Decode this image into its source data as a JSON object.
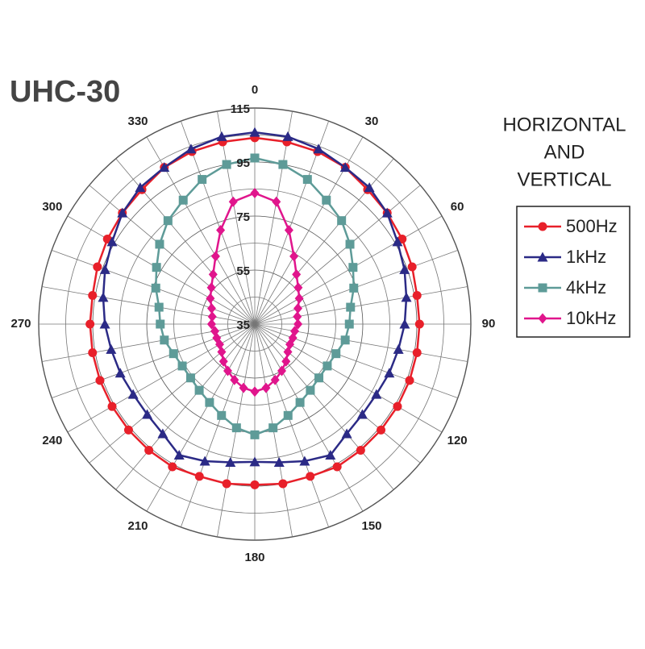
{
  "chart_data": {
    "type": "polar",
    "title": "UHC-30",
    "legend_title": [
      "HORIZONTAL",
      "AND",
      "VERTICAL"
    ],
    "theta": [
      0,
      10,
      20,
      30,
      40,
      50,
      60,
      70,
      80,
      90,
      100,
      110,
      120,
      130,
      140,
      150,
      160,
      170,
      180,
      190,
      200,
      210,
      220,
      230,
      240,
      250,
      260,
      270,
      280,
      290,
      300,
      310,
      320,
      330,
      340,
      350
    ],
    "thetaticks": [
      0,
      30,
      60,
      90,
      120,
      150,
      180,
      210,
      240,
      270,
      300,
      330
    ],
    "rlim": [
      35,
      115
    ],
    "rticks": [
      35,
      55,
      75,
      95,
      115
    ],
    "r_minor_ticks": [
      45,
      65,
      85,
      105
    ],
    "series": [
      {
        "name": "500Hz",
        "color": "#e8202a",
        "marker": "circle",
        "values": [
          104,
          103.5,
          103,
          102,
          100,
          99,
          98,
          97,
          96,
          96,
          96,
          96,
          96,
          96,
          96,
          96,
          95,
          95,
          94.5,
          95,
          95,
          96,
          96,
          96,
          96,
          96,
          96,
          96,
          96,
          97,
          98,
          99,
          100,
          102,
          103,
          103.5
        ]
      },
      {
        "name": "1kHz",
        "color": "#2b2a86",
        "marker": "triangle",
        "values": [
          106,
          105.5,
          104,
          102,
          101,
          99,
          96,
          94,
          92,
          90.5,
          89,
          88,
          87,
          87,
          88,
          91,
          89,
          87,
          86,
          87,
          89,
          91,
          88,
          87,
          87,
          88,
          89,
          90.5,
          92,
          94,
          96,
          99,
          101,
          102,
          104,
          105.5
        ]
      },
      {
        "name": "4kHz",
        "color": "#5e9b98",
        "marker": "square",
        "values": [
          96.5,
          95,
          92,
          88,
          85,
          81,
          77,
          74,
          71,
          70,
          69,
          67,
          66,
          66,
          67,
          68.5,
          71,
          74,
          76,
          74,
          71,
          68.5,
          67,
          66,
          66,
          67,
          69,
          70,
          71,
          74,
          77,
          81,
          85,
          88,
          92,
          95
        ]
      },
      {
        "name": "10kHz",
        "color": "#e0158c",
        "marker": "diamond",
        "values": [
          83.5,
          81,
          72,
          64,
          59,
          56,
          54,
          52,
          51,
          51,
          50,
          50,
          50,
          51,
          53,
          55,
          57,
          59,
          60,
          59,
          57,
          55,
          53,
          51,
          50,
          50,
          50,
          51,
          51,
          52,
          54,
          56,
          59,
          64,
          72,
          81
        ]
      }
    ]
  }
}
